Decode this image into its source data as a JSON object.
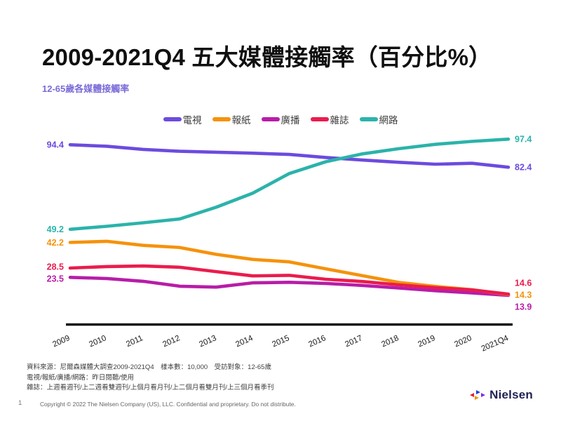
{
  "page": {
    "title": "2009-2021Q4 五大媒體接觸率（百分比%）",
    "subtitle": "12-65歲各媒體接觸率",
    "page_number": "1",
    "copyright": "Copyright © 2022 The Nielsen Company (US), LLC. Confidential and proprietary. Do not distribute.",
    "logo_text": "Nielsen"
  },
  "footnotes": {
    "line1": "資料來源：尼爾森媒體大調查2009-2021Q4　樣本數：10,000　受訪對象：12-65歲",
    "line2": "電視/報紙/廣播/網路：昨日閱聽/使用",
    "line3": "雜誌：上週看週刊/上二週看雙週刊/上個月看月刊/上二個月看雙月刊/上三個月看季刊"
  },
  "chart_data": {
    "type": "line",
    "title": "2009-2021Q4 五大媒體接觸率（百分比%）",
    "subtitle": "12-65歲各媒體接觸率",
    "categories": [
      "2009",
      "2010",
      "2011",
      "2012",
      "2013",
      "2014",
      "2015",
      "2016",
      "2017",
      "2018",
      "2019",
      "2020",
      "2021Q4"
    ],
    "series": [
      {
        "name": "電視",
        "color": "#6C4BDE",
        "values": [
          94.4,
          93.6,
          91.9,
          90.9,
          90.4,
          89.9,
          89.2,
          87.6,
          86.2,
          85.0,
          84.0,
          84.5,
          82.4
        ]
      },
      {
        "name": "報紙",
        "color": "#F5920B",
        "values": [
          42.2,
          42.8,
          40.6,
          39.5,
          35.8,
          33.1,
          31.8,
          28.1,
          24.4,
          20.8,
          18.7,
          16.9,
          14.3
        ]
      },
      {
        "name": "廣播",
        "color": "#B71DA8",
        "values": [
          23.5,
          22.9,
          21.4,
          18.8,
          18.3,
          20.6,
          20.9,
          20.3,
          19.2,
          17.8,
          16.4,
          15.2,
          13.9
        ]
      },
      {
        "name": "雜誌",
        "color": "#EA1C4D",
        "values": [
          28.5,
          29.3,
          29.6,
          28.9,
          26.6,
          24.3,
          24.6,
          22.5,
          21.3,
          19.5,
          18.0,
          16.8,
          14.6
        ]
      },
      {
        "name": "網路",
        "color": "#2BB3AA",
        "values": [
          49.2,
          50.8,
          52.7,
          54.7,
          61.0,
          68.5,
          79.0,
          85.3,
          89.5,
          92.3,
          94.6,
          96.2,
          97.4
        ]
      }
    ],
    "ylim": [
      0,
      100
    ],
    "grid": false,
    "legend_position": "top",
    "axis_line": "bottom-only",
    "point_labels": "first-and-last"
  }
}
